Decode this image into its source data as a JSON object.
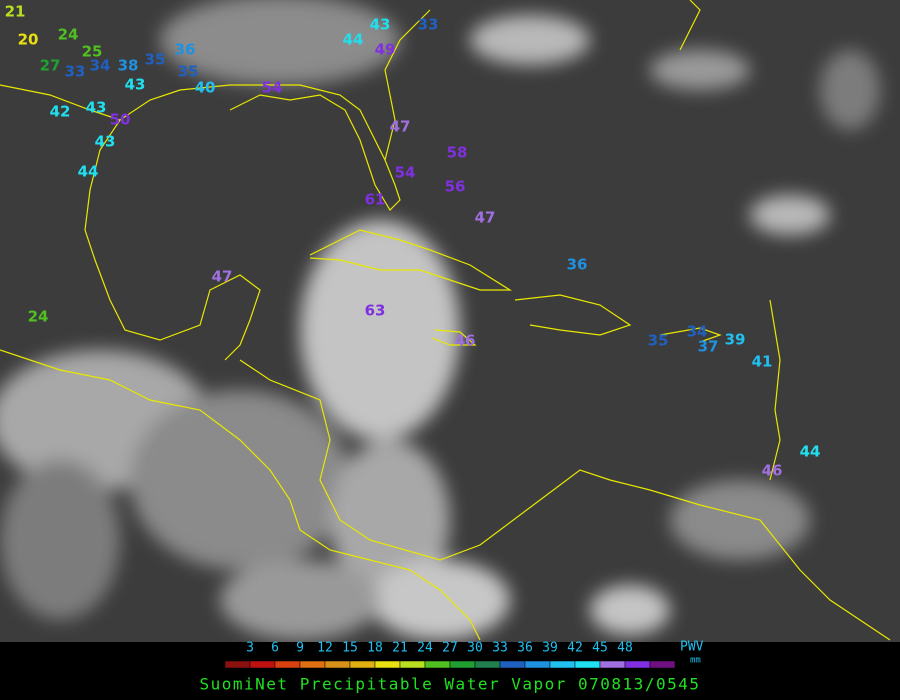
{
  "title": "SuomiNet Precipitable Water Vapor 070813/0545",
  "scale": {
    "label": "PWV",
    "unit": "mm",
    "ticks": [
      3,
      6,
      9,
      12,
      15,
      18,
      21,
      24,
      27,
      30,
      33,
      36,
      39,
      42,
      45,
      48
    ],
    "colors": [
      "#8b1010",
      "#c01010",
      "#d84010",
      "#e07010",
      "#d89018",
      "#e0b010",
      "#e8e010",
      "#b8e020",
      "#50c020",
      "#20a030",
      "#208050",
      "#2060c0",
      "#2090e0",
      "#20c0f0",
      "#20e0f0",
      "#a070e0",
      "#8030e0",
      "#701080"
    ]
  },
  "stations": [
    21,
    20,
    24,
    25,
    27,
    33,
    34,
    38,
    35,
    36,
    35,
    43,
    40,
    54,
    42,
    43,
    50,
    43,
    44,
    43,
    33,
    44,
    49,
    47,
    58,
    54,
    56,
    61,
    47,
    36,
    47,
    24,
    63,
    46,
    35,
    34,
    37,
    39,
    41,
    44,
    46
  ]
}
